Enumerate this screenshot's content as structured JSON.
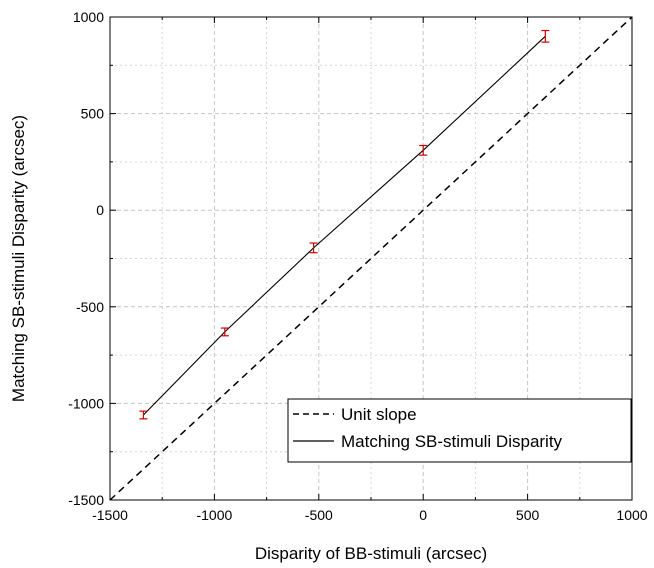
{
  "chart_data": {
    "type": "line",
    "title": "",
    "xlabel": "Disparity of BB-stimuli (arcsec)",
    "ylabel": "Matching SB-stimuli Disparity (arcsec)",
    "xlim": [
      -1500,
      1000
    ],
    "ylim": [
      -1500,
      1000
    ],
    "grid": true,
    "legend_position": "bottom-right",
    "x_ticks": [
      "-1500",
      "-1000",
      "-500",
      "0",
      "500",
      "1000"
    ],
    "y_ticks": [
      "-1500",
      "-1000",
      "-500",
      "0",
      "500",
      "1000"
    ],
    "series": [
      {
        "name": "Unit slope",
        "style": "dashed",
        "color": "#000000",
        "x": [
          -1500,
          1000
        ],
        "y": [
          -1500,
          1000
        ]
      },
      {
        "name": "Matching SB-stimuli Disparity",
        "style": "solid",
        "color": "#000000",
        "x": [
          -1340,
          -950,
          -525,
          0,
          585
        ],
        "y": [
          -1060,
          -630,
          -195,
          310,
          900
        ]
      }
    ],
    "error_bars": {
      "color": "#cc0000",
      "x": [
        -1340,
        -950,
        -525,
        0,
        585
      ],
      "y": [
        -1060,
        -630,
        -195,
        310,
        900
      ],
      "err": [
        20,
        20,
        25,
        25,
        30
      ]
    }
  }
}
